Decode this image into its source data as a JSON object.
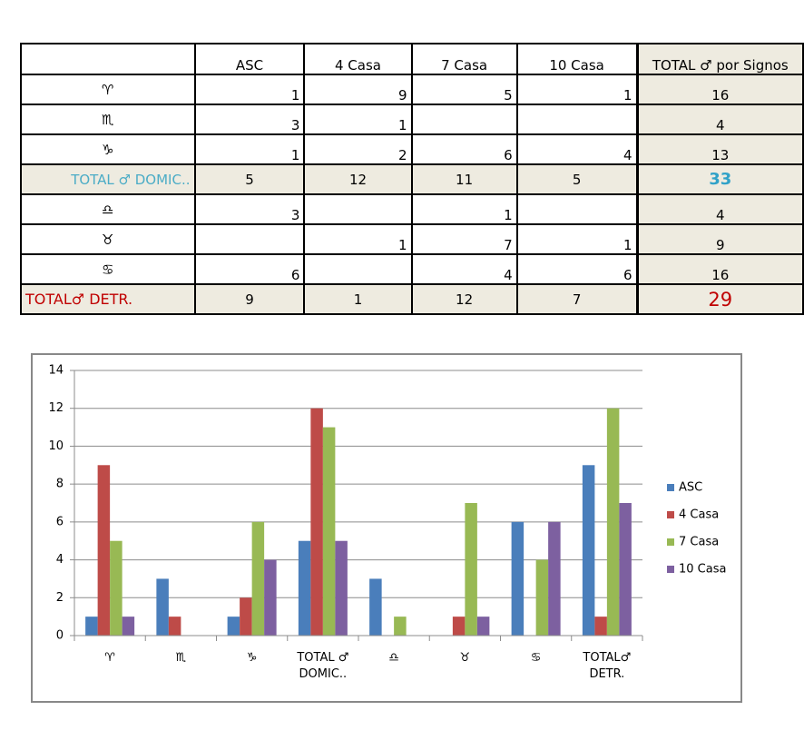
{
  "table": {
    "columns": [
      "ASC",
      "4 Casa",
      "7 Casa",
      "10 Casa",
      "TOTAL ♂ por Signos"
    ],
    "rows": [
      {
        "label": "♈",
        "cells": [
          1,
          9,
          5,
          1,
          16
        ]
      },
      {
        "label": "♏",
        "cells": [
          3,
          1,
          null,
          null,
          4
        ]
      },
      {
        "label": "♑",
        "cells": [
          1,
          2,
          6,
          4,
          13
        ]
      },
      {
        "label": "TOTAL ♂ DOMIC..",
        "cells": [
          5,
          12,
          11,
          5,
          33
        ]
      },
      {
        "label": "♎",
        "cells": [
          3,
          null,
          1,
          null,
          4
        ]
      },
      {
        "label": "♉",
        "cells": [
          null,
          1,
          7,
          1,
          9
        ]
      },
      {
        "label": "♋",
        "cells": [
          6,
          null,
          4,
          6,
          16
        ]
      },
      {
        "label": "TOTAL♂ DETR.",
        "cells": [
          9,
          1,
          12,
          7,
          29
        ]
      }
    ]
  },
  "chart_data": {
    "type": "bar",
    "categories": [
      "♈",
      "♏",
      "♑",
      "TOTAL ♂ DOMIC..",
      "♎",
      "♉",
      "♋",
      "TOTAL♂ DETR."
    ],
    "series": [
      {
        "name": "ASC",
        "color": "#4a7ebb",
        "values": [
          1,
          3,
          1,
          5,
          3,
          null,
          6,
          9
        ]
      },
      {
        "name": "4 Casa",
        "color": "#be4b48",
        "values": [
          9,
          1,
          2,
          12,
          null,
          1,
          null,
          1
        ]
      },
      {
        "name": "7 Casa",
        "color": "#98b954",
        "values": [
          5,
          null,
          6,
          11,
          1,
          7,
          4,
          12
        ]
      },
      {
        "name": "10 Casa",
        "color": "#7d60a0",
        "values": [
          1,
          null,
          4,
          5,
          null,
          1,
          6,
          7
        ]
      }
    ],
    "ylim": [
      0,
      14
    ],
    "yticks": [
      0,
      2,
      4,
      6,
      8,
      10,
      12,
      14
    ],
    "grid": true,
    "legend": "right"
  }
}
